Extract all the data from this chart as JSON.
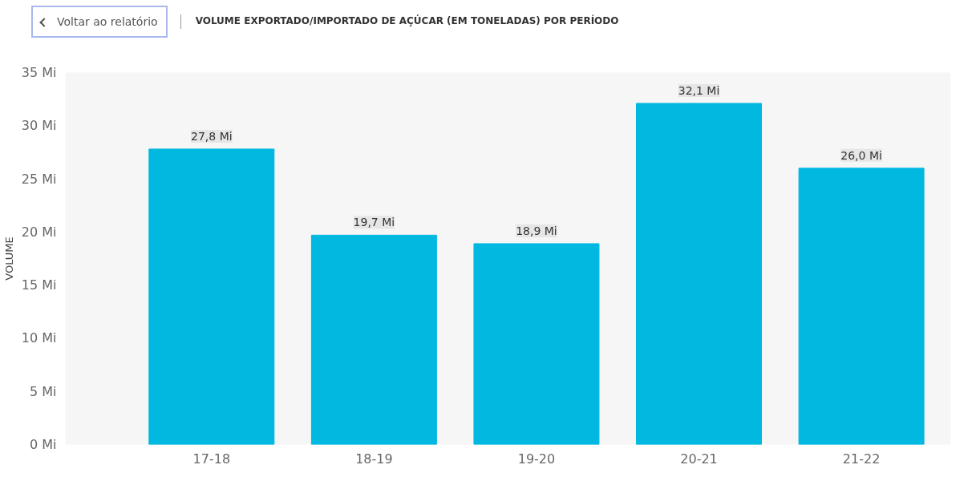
{
  "chart_data": {
    "type": "bar",
    "title": "VOLUME EXPORTADO/IMPORTADO DE AÇÚCAR (EM TONELADAS) POR PERÍODO",
    "ylabel": "VOLUME",
    "annotations": [
      "Voltar ao relatório"
    ],
    "categories": [
      "17-18",
      "18-19",
      "19-20",
      "20-21",
      "21-22"
    ],
    "values": [
      27.8,
      19.7,
      18.9,
      32.1,
      26.0
    ],
    "value_labels": [
      "27,8 Mi",
      "19,7 Mi",
      "18,9 Mi",
      "32,1 Mi",
      "26,0 Mi"
    ],
    "color": "#00b8e0",
    "ylim": [
      0,
      35
    ],
    "yticks": [
      {
        "value": 0,
        "label": "0 Mi"
      },
      {
        "value": 5,
        "label": "5 Mi"
      },
      {
        "value": 10,
        "label": "10 Mi"
      },
      {
        "value": 15,
        "label": "15 Mi"
      },
      {
        "value": 20,
        "label": "20 Mi"
      },
      {
        "value": 25,
        "label": "25 Mi"
      },
      {
        "value": 30,
        "label": "30 Mi"
      },
      {
        "value": 35,
        "label": "35 Mi"
      }
    ],
    "grid": false
  }
}
